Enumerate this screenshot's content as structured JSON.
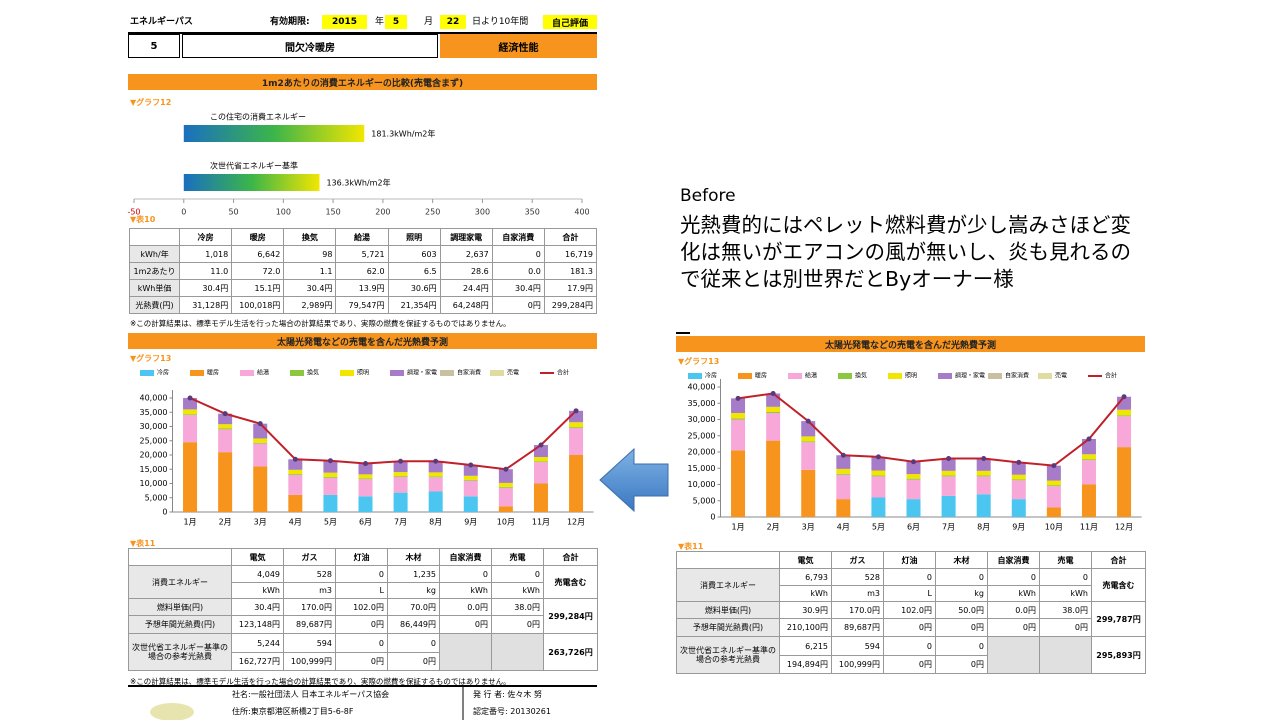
{
  "slide": {
    "before_label": "Before",
    "comment": "光熱費的にはペレット燃料費が少し嵩みさほど変化は無いがエアコンの風が無いし、炎も見れるので従来とは別世界だとByオーナー様"
  },
  "left_doc": {
    "header": {
      "brand": "エネルギーパス",
      "validity": "有効期限:",
      "year": "2015",
      "year_unit": "年",
      "month": "5",
      "month_unit": "月",
      "day": "22",
      "day_unit": "日より10年間",
      "self_eval": "自己評価",
      "number": "5",
      "name": "間欠冷暖房",
      "category": "経済性能"
    },
    "table10": {
      "label": "▼表10",
      "header": [
        "冷房",
        "暖房",
        "換気",
        "給湯",
        "照明",
        "調理家電",
        "自家消費",
        "合計"
      ],
      "rows": [
        [
          "kWh/年",
          "1,018",
          "6,642",
          "98",
          "5,721",
          "603",
          "2,637",
          "0",
          "16,719"
        ],
        [
          "1m2あたり",
          "11.0",
          "72.0",
          "1.1",
          "62.0",
          "6.5",
          "28.6",
          "0.0",
          "181.3"
        ],
        [
          "kWh単価",
          "30.4円",
          "15.1円",
          "30.4円",
          "13.9円",
          "30.6円",
          "24.4円",
          "30.4円",
          "17.9円"
        ],
        [
          "光熱費(円)",
          "31,128円",
          "100,018円",
          "2,989円",
          "79,547円",
          "21,354円",
          "64,248円",
          "0円",
          "299,284円"
        ]
      ]
    },
    "note1": "※この計算結果は、標準モデル生活を行った場合の計算結果であり、実際の燃費を保証するものではありません。",
    "table11": {
      "label": "▼表11",
      "header": [
        "電気",
        "ガス",
        "灯油",
        "木材",
        "自家消費",
        "売電",
        "合計"
      ],
      "energy": {
        "label": "消費エネルギー",
        "amounts": [
          "4,049",
          "528",
          "0",
          "1,235",
          "0",
          "0"
        ],
        "units": [
          "kWh",
          "m3",
          "L",
          "kg",
          "kWh",
          "kWh"
        ],
        "total": "売電含む"
      },
      "unit_price": {
        "label": "燃料単価(円)",
        "values": [
          "30.4円",
          "170.0円",
          "102.0円",
          "70.0円",
          "0.0円",
          "38.0円"
        ]
      },
      "annual_cost": {
        "label": "予想年間光熱費(円)",
        "values": [
          "123,148円",
          "89,687円",
          "0円",
          "86,449円",
          "0円",
          "0円"
        ],
        "total": "299,284円"
      },
      "reference": {
        "label": "次世代省エネルギー基準の場合の参考光熱費",
        "amounts": [
          "5,244",
          "594",
          "0",
          "0"
        ],
        "costs": [
          "162,727円",
          "100,999円",
          "0円",
          "0円"
        ],
        "total": "263,726円"
      }
    },
    "note2": "※この計算結果は、標準モデル生活を行った場合の計算結果であり、実際の燃費を保証するものではありません。",
    "footer": {
      "company": "社名:一般社団法人 日本エネルギーパス協会",
      "issuer": "発 行 者: 佐々木 努",
      "address": "住所:東京都港区新橋2丁目5-6-8F",
      "cert": "認定番号: 20130261"
    }
  },
  "right_doc": {
    "table11": {
      "label": "▼表11",
      "header": [
        "電気",
        "ガス",
        "灯油",
        "木材",
        "自家消費",
        "売電",
        "合計"
      ],
      "energy": {
        "label": "消費エネルギー",
        "amounts": [
          "6,793",
          "528",
          "0",
          "0",
          "0",
          "0"
        ],
        "units": [
          "kWh",
          "m3",
          "L",
          "kg",
          "kWh",
          "kWh"
        ],
        "total": "売電含む"
      },
      "unit_price": {
        "label": "燃料単価(円)",
        "values": [
          "30.9円",
          "170.0円",
          "102.0円",
          "50.0円",
          "0.0円",
          "38.0円"
        ]
      },
      "annual_cost": {
        "label": "予想年間光熱費(円)",
        "values": [
          "210,100円",
          "89,687円",
          "0円",
          "0円",
          "0円",
          "0円"
        ],
        "total": "299,787円"
      },
      "reference": {
        "label": "次世代省エネルギー基準の場合の参考光熱費",
        "amounts": [
          "6,215",
          "594",
          "0",
          "0"
        ],
        "costs": [
          "194,894円",
          "100,999円",
          "0円",
          "0円"
        ],
        "total": "295,893円"
      }
    }
  },
  "chart_data": [
    {
      "type": "hbar",
      "title": "1m2あたりの消費エネルギーの比較(売電含まず)",
      "label": "▼グラフ12",
      "categories": [
        "この住宅の消費エネルギー",
        "次世代省エネルギー基準"
      ],
      "values": [
        181.3,
        136.3
      ],
      "value_labels": [
        "181.3kWh/m2年",
        "136.3kWh/m2年"
      ],
      "colors": [
        "#1a6fc0",
        "#3cb54a",
        "#f2e600"
      ],
      "xlim": [
        -50,
        400
      ],
      "xticks": [
        -50,
        0,
        50,
        100,
        150,
        200,
        250,
        300,
        350,
        400
      ]
    },
    {
      "type": "stacked_bar",
      "title": "太陽光発電などの売電を含んだ光熱費予測",
      "label": "▼グラフ13",
      "grid": false,
      "categories": [
        "1月",
        "2月",
        "3月",
        "4月",
        "5月",
        "6月",
        "7月",
        "8月",
        "9月",
        "10月",
        "11月",
        "12月"
      ],
      "ylim": [
        0,
        40000
      ],
      "yticks": [
        0,
        {
          "value": 5000,
          "label": "5,000"
        },
        {
          "value": 10000,
          "label": "10,000"
        },
        {
          "value": 15000,
          "label": "15,000"
        },
        {
          "value": 20000,
          "label": "20,000"
        },
        {
          "value": 25000,
          "label": "25,000"
        },
        {
          "value": 30000,
          "label": "30,000"
        },
        {
          "value": 35000,
          "label": "35,000"
        },
        {
          "value": 40000,
          "label": "40,000"
        }
      ],
      "series": [
        {
          "name": "冷房",
          "color": "#4bc6f0",
          "values": [
            0,
            0,
            0,
            0,
            6000,
            5500,
            6800,
            7200,
            5500,
            0,
            0,
            0
          ]
        },
        {
          "name": "暖房",
          "color": "#f7941d",
          "values": [
            24500,
            21000,
            16000,
            6000,
            0,
            0,
            0,
            0,
            0,
            2000,
            10000,
            20000
          ]
        },
        {
          "name": "給湯",
          "color": "#f7a8d8",
          "values": [
            9500,
            8000,
            8000,
            7000,
            6000,
            6000,
            5500,
            5000,
            5500,
            6500,
            7500,
            9500
          ]
        },
        {
          "name": "換気",
          "color": "#8dc63f",
          "values": [
            300,
            300,
            300,
            300,
            300,
            300,
            300,
            300,
            300,
            300,
            300,
            300
          ]
        },
        {
          "name": "照明",
          "color": "#f2e600",
          "values": [
            1700,
            1500,
            1500,
            1500,
            1500,
            1400,
            1400,
            1400,
            1400,
            1400,
            1500,
            1700
          ]
        },
        {
          "name": "調理・家電",
          "color": "#a67cc8",
          "values": [
            4000,
            3700,
            5200,
            3700,
            4200,
            3800,
            3800,
            3900,
            3800,
            4800,
            4200,
            4000
          ]
        },
        {
          "name": "自家消費",
          "color": "#c8c0a0",
          "values": [
            0,
            0,
            0,
            0,
            0,
            0,
            0,
            0,
            0,
            0,
            0,
            0
          ]
        },
        {
          "name": "売電",
          "color": "#e0dca0",
          "values": [
            0,
            0,
            0,
            0,
            0,
            0,
            0,
            0,
            0,
            0,
            0,
            0
          ]
        },
        {
          "name": "合計",
          "color": "#c0202a",
          "type": "line",
          "values": [
            40000,
            34500,
            31000,
            18500,
            18000,
            17000,
            17800,
            17800,
            16500,
            15000,
            23500,
            35500
          ]
        }
      ]
    },
    {
      "type": "stacked_bar",
      "title": "太陽光発電などの売電を含んだ光熱費予測",
      "label": "▼グラフ13",
      "grid": false,
      "categories": [
        "1月",
        "2月",
        "3月",
        "4月",
        "5月",
        "6月",
        "7月",
        "8月",
        "9月",
        "10月",
        "11月",
        "12月"
      ],
      "ylim": [
        0,
        40000
      ],
      "yticks": [
        0,
        {
          "value": 5000,
          "label": "5,000"
        },
        {
          "value": 10000,
          "label": "10,000"
        },
        {
          "value": 15000,
          "label": "15,000"
        },
        {
          "value": 20000,
          "label": "20,000"
        },
        {
          "value": 25000,
          "label": "25,000"
        },
        {
          "value": 30000,
          "label": "30,000"
        },
        {
          "value": 35000,
          "label": "35,000"
        },
        {
          "value": 40000,
          "label": "40,000"
        }
      ],
      "series": [
        {
          "name": "冷房",
          "color": "#4bc6f0",
          "values": [
            0,
            0,
            0,
            0,
            6000,
            5500,
            6500,
            7000,
            5500,
            0,
            0,
            0
          ]
        },
        {
          "name": "暖房",
          "color": "#f7941d",
          "values": [
            20500,
            23500,
            14500,
            5500,
            0,
            0,
            0,
            0,
            0,
            3000,
            10000,
            21500
          ]
        },
        {
          "name": "給湯",
          "color": "#f7a8d8",
          "values": [
            9500,
            8500,
            8500,
            7500,
            6500,
            6000,
            6000,
            5500,
            5800,
            6500,
            7500,
            9500
          ]
        },
        {
          "name": "換気",
          "color": "#8dc63f",
          "values": [
            300,
            300,
            300,
            300,
            300,
            300,
            300,
            300,
            300,
            300,
            300,
            300
          ]
        },
        {
          "name": "照明",
          "color": "#f2e600",
          "values": [
            1700,
            1600,
            1500,
            1500,
            1500,
            1400,
            1400,
            1400,
            1400,
            1400,
            1500,
            1700
          ]
        },
        {
          "name": "調理・家電",
          "color": "#a67cc8",
          "values": [
            4500,
            4100,
            4700,
            4200,
            4200,
            3800,
            3800,
            3800,
            3800,
            4600,
            4700,
            4000
          ]
        },
        {
          "name": "自家消費",
          "color": "#c8c0a0",
          "values": [
            0,
            0,
            0,
            0,
            0,
            0,
            0,
            0,
            0,
            0,
            0,
            0
          ]
        },
        {
          "name": "売電",
          "color": "#e0dca0",
          "values": [
            0,
            0,
            0,
            0,
            0,
            0,
            0,
            0,
            0,
            0,
            0,
            0
          ]
        },
        {
          "name": "合計",
          "color": "#c0202a",
          "type": "line",
          "values": [
            36500,
            38000,
            29500,
            19000,
            18500,
            17000,
            18000,
            18000,
            16800,
            15800,
            24000,
            37000
          ]
        }
      ]
    }
  ]
}
